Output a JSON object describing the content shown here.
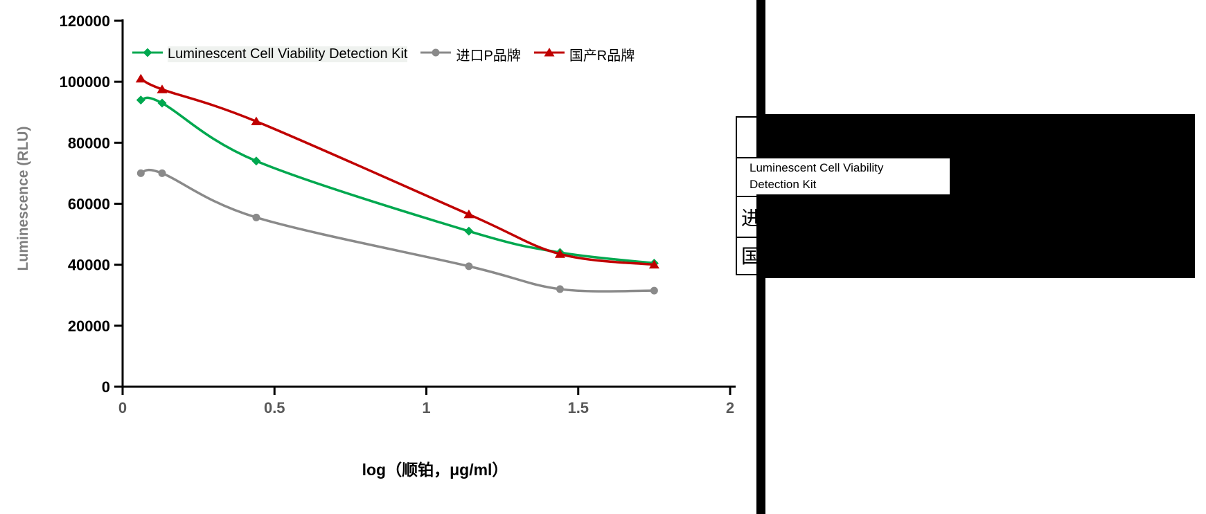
{
  "chart_data": {
    "type": "line",
    "title": "",
    "xlabel": "log（顺铂，μg/ml）",
    "ylabel": "Luminescence (RLU)",
    "x": [
      0.06,
      0.13,
      0.44,
      1.14,
      1.44,
      1.75
    ],
    "series": [
      {
        "key": "kit",
        "name": "Luminescent Cell Viability Detection Kit",
        "color": "#00A84F",
        "marker": "diamond",
        "values": [
          94000,
          93000,
          74000,
          51000,
          44000,
          40500
        ]
      },
      {
        "key": "imported_p",
        "name": "进口P品牌",
        "color": "#8A8A8A",
        "marker": "circle",
        "values": [
          70000,
          70000,
          55500,
          39500,
          32000,
          31500
        ]
      },
      {
        "key": "domestic_r",
        "name": "国产R品牌",
        "color": "#C00000",
        "marker": "triangle",
        "values": [
          101000,
          97500,
          87000,
          56500,
          43500,
          40000
        ]
      }
    ],
    "xlim": [
      0,
      2
    ],
    "ylim": [
      0,
      120000
    ],
    "x_tick_labels": [
      "0",
      "0.5",
      "1",
      "1.5",
      "2"
    ],
    "y_tick_labels": [
      "0",
      "20000",
      "40000",
      "60000",
      "80000",
      "100000",
      "120000"
    ],
    "grid": false,
    "legend_position": "top-left"
  },
  "legend": {
    "items": [
      {
        "label": "Luminescent Cell Viability Detection Kit",
        "color": "#00A84F",
        "marker": "diamond"
      },
      {
        "label": "进口P品牌",
        "color": "#8A8A8A",
        "marker": "circle"
      },
      {
        "label": "国产R品牌",
        "color": "#C00000",
        "marker": "triangle"
      }
    ]
  },
  "table": {
    "kit_line1": "Luminescent Cell Viability",
    "kit_line2": "Detection Kit",
    "row_p": "进口P品牌",
    "row_r": "国产R品牌"
  },
  "colors": {
    "kit_green": "#00A84F",
    "imported_gray": "#8A8A8A",
    "domestic_red": "#C00000",
    "axis_black": "#000000",
    "x_tick_gray": "#595959",
    "y_title_gray": "#7F7F7F",
    "redaction_black": "#000000"
  }
}
